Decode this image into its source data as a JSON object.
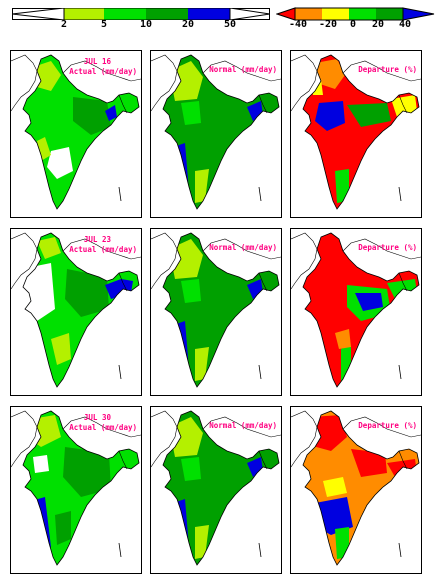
{
  "legend_left": {
    "colors": [
      "#ffffff",
      "#b4f000",
      "#00e000",
      "#00a000",
      "#0000e0",
      "#ffffff"
    ],
    "ticks": [
      "2",
      "5",
      "10",
      "20",
      "50"
    ]
  },
  "legend_right": {
    "colors": [
      "#ff0000",
      "#ff8c00",
      "#ffff00",
      "#00e000",
      "#00a000",
      "#0000e0"
    ],
    "ticks": [
      "-40",
      "-20",
      "0",
      "20",
      "40"
    ]
  },
  "rows": [
    {
      "date": "JUL 16",
      "actual_label": "Actual (mm/day)",
      "normal_label": "Normal (mm/day)",
      "departure_label": "Departure (%)"
    },
    {
      "date": "JUL 23",
      "actual_label": "Actual (mm/day)",
      "normal_label": "Normal (mm/day)",
      "departure_label": "Departure (%)"
    },
    {
      "date": "JUL 30",
      "actual_label": "Actual (mm/day)",
      "normal_label": "Normal (mm/day)",
      "departure_label": "Departure (%)"
    }
  ]
}
